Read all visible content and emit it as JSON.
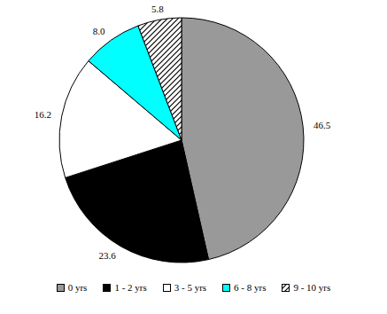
{
  "chart_data": {
    "type": "pie",
    "categories": [
      "0 yrs",
      "1 - 2 yrs",
      "3 - 5 yrs",
      "6 - 8 yrs",
      "9 - 10 yrs"
    ],
    "values": [
      46.5,
      23.6,
      16.2,
      8.0,
      5.8
    ],
    "value_labels": [
      "46.5",
      "23.6",
      "16.2",
      "8.0",
      "5.8"
    ],
    "colors": [
      "#999999",
      "#000000",
      "#ffffff",
      "#00ffff",
      "#000000"
    ],
    "data_labels": true,
    "legend": "bottom"
  }
}
